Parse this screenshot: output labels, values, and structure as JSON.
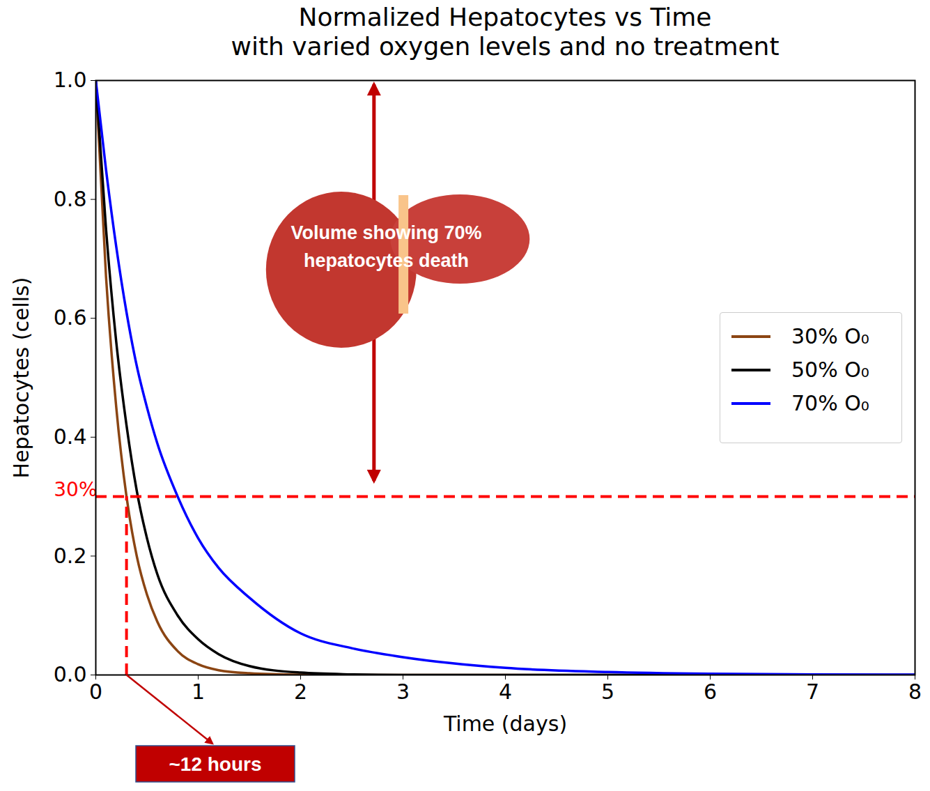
{
  "chart_data": {
    "type": "line",
    "title": "Normalized Hepatocytes vs Time",
    "subtitle": "with varied oxygen levels and no treatment",
    "x_label": "Time (days)",
    "y_label": "Hepatocytes (cells)",
    "x": [
      0,
      0.1,
      0.2,
      0.3,
      0.4,
      0.5,
      0.6,
      0.8,
      1.0,
      1.2,
      1.5,
      2,
      2.5,
      3,
      4,
      5,
      6,
      7,
      8
    ],
    "series": [
      {
        "name": "30% O₀",
        "color": "#8b4513",
        "values": [
          1,
          0.67,
          0.45,
          0.3,
          0.2,
          0.135,
          0.09,
          0.04,
          0.018,
          0.008,
          0.003,
          0.0005,
          0,
          0,
          0,
          0,
          0,
          0,
          0
        ]
      },
      {
        "name": "50% O₀",
        "color": "#000000",
        "values": [
          1,
          0.75,
          0.56,
          0.42,
          0.31,
          0.23,
          0.17,
          0.1,
          0.06,
          0.035,
          0.015,
          0.004,
          0.001,
          0,
          0,
          0,
          0,
          0,
          0
        ]
      },
      {
        "name": "70% O₀",
        "color": "#0000ff",
        "values": [
          1,
          0.85,
          0.72,
          0.61,
          0.52,
          0.45,
          0.39,
          0.3,
          0.23,
          0.18,
          0.13,
          0.07,
          0.045,
          0.03,
          0.012,
          0.005,
          0.002,
          0.001,
          0.0005
        ]
      }
    ],
    "xlim": [
      0,
      8
    ],
    "xticks": [
      0,
      1,
      2,
      3,
      4,
      5,
      6,
      7,
      8
    ],
    "ylim": [
      0,
      1
    ],
    "yticks": [
      {
        "value": 0,
        "label": "0.0"
      },
      {
        "value": 0.2,
        "label": "0.2"
      },
      {
        "value": 0.4,
        "label": "0.4"
      },
      {
        "value": 0.6,
        "label": "0.6"
      },
      {
        "value": 0.8,
        "label": "0.8"
      },
      {
        "value": 1,
        "label": "1.0"
      }
    ],
    "grid": false,
    "legend": "right",
    "threshold": {
      "value": 0.3,
      "label": "30%"
    },
    "crossing": {
      "x": 0.3,
      "label": "~12 hours"
    },
    "annotation": "Volume showing 70% hepatocytes death"
  }
}
